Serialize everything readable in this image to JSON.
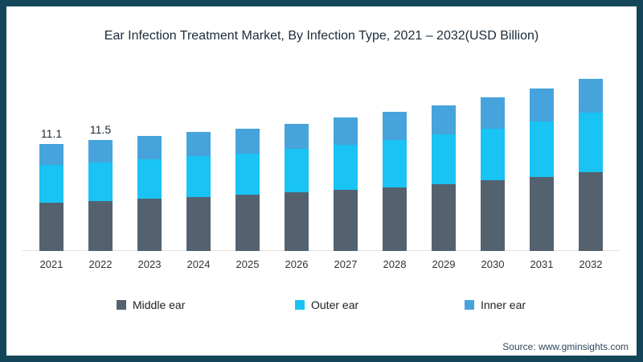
{
  "title": "Ear Infection Treatment Market, By Infection Type, 2021 – 2032(USD Billion)",
  "source": "Source: www.gminsights.com",
  "frame_color": "#14465A",
  "chart_data": {
    "type": "bar",
    "stacked": true,
    "title": "Ear Infection Treatment Market, By Infection Type, 2021 – 2032(USD Billion)",
    "xlabel": "",
    "ylabel": "USD Billion",
    "ylim": [
      0,
      18
    ],
    "grid": false,
    "y_axis_visible": false,
    "legend_position": "bottom",
    "categories": [
      "2021",
      "2022",
      "2023",
      "2024",
      "2025",
      "2026",
      "2027",
      "2028",
      "2029",
      "2030",
      "2031",
      "2032"
    ],
    "series": [
      {
        "name": "Middle ear",
        "color": "#54626F",
        "values": [
          5.0,
          5.2,
          5.4,
          5.6,
          5.8,
          6.1,
          6.3,
          6.6,
          6.9,
          7.3,
          7.7,
          8.2
        ]
      },
      {
        "name": "Outer ear",
        "color": "#19C3F3",
        "values": [
          3.9,
          4.0,
          4.1,
          4.2,
          4.3,
          4.5,
          4.7,
          4.9,
          5.2,
          5.4,
          5.7,
          6.1
        ]
      },
      {
        "name": "Inner ear",
        "color": "#47A3DB",
        "values": [
          2.2,
          2.3,
          2.4,
          2.5,
          2.6,
          2.6,
          2.8,
          2.9,
          3.0,
          3.2,
          3.4,
          3.5
        ]
      }
    ],
    "totals": [
      11.1,
      11.5,
      11.9,
      12.3,
      12.7,
      13.2,
      13.8,
      14.4,
      15.1,
      15.9,
      16.8,
      17.8
    ],
    "total_labels": {
      "2021": "11.1",
      "2022": "11.5"
    }
  },
  "legend": {
    "items": [
      {
        "label": "Middle ear"
      },
      {
        "label": "Outer ear"
      },
      {
        "label": "Inner ear"
      }
    ]
  }
}
